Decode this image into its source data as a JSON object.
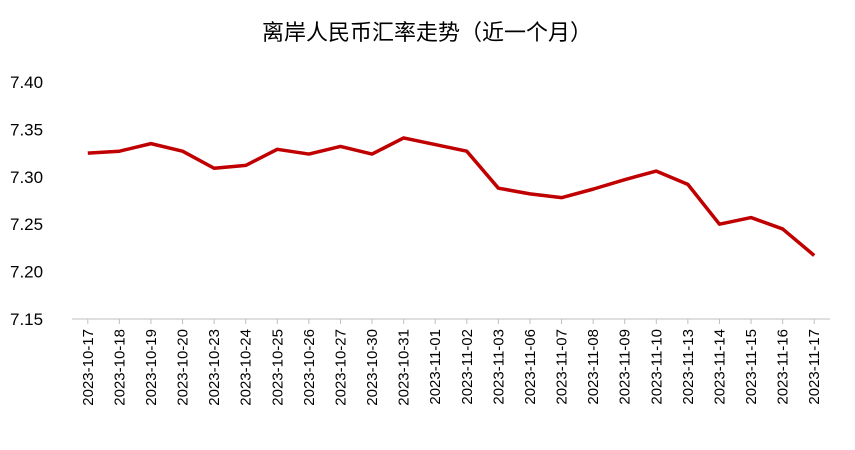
{
  "chart_data": {
    "type": "line",
    "title": "离岸人民币汇率走势（近一个月）",
    "categories": [
      "2023-10-17",
      "2023-10-18",
      "2023-10-19",
      "2023-10-20",
      "2023-10-23",
      "2023-10-24",
      "2023-10-25",
      "2023-10-26",
      "2023-10-27",
      "2023-10-30",
      "2023-10-31",
      "2023-11-01",
      "2023-11-02",
      "2023-11-03",
      "2023-11-06",
      "2023-11-07",
      "2023-11-08",
      "2023-11-09",
      "2023-11-10",
      "2023-11-13",
      "2023-11-14",
      "2023-11-15",
      "2023-11-16",
      "2023-11-17"
    ],
    "values": [
      7.325,
      7.327,
      7.335,
      7.327,
      7.309,
      7.312,
      7.329,
      7.324,
      7.332,
      7.324,
      7.341,
      7.334,
      7.327,
      7.288,
      7.282,
      7.278,
      7.287,
      7.297,
      7.306,
      7.292,
      7.25,
      7.257,
      7.245,
      7.217
    ],
    "color": "#c00000",
    "ylim": [
      7.15,
      7.4
    ],
    "yticks": [
      {
        "value": 7.15,
        "label": "7.15"
      },
      {
        "value": 7.2,
        "label": "7.20"
      },
      {
        "value": 7.25,
        "label": "7.25"
      },
      {
        "value": 7.3,
        "label": "7.30"
      },
      {
        "value": 7.35,
        "label": "7.35"
      },
      {
        "value": 7.4,
        "label": "7.40"
      }
    ],
    "grid": false
  }
}
